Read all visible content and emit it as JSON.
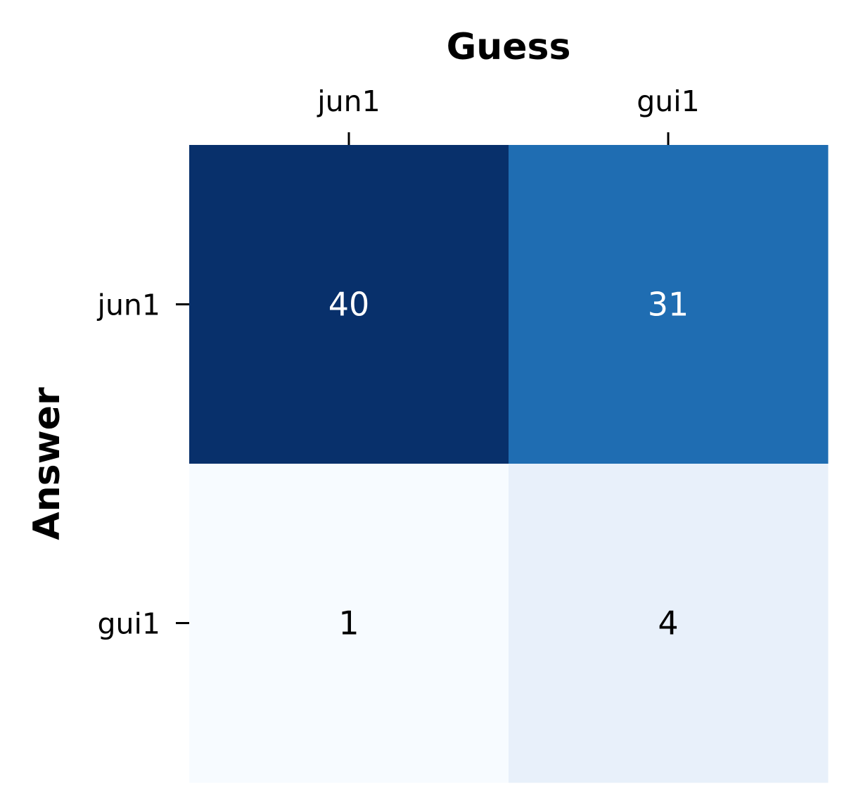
{
  "chart_data": {
    "type": "heatmap",
    "title": "",
    "xlabel": "Guess",
    "ylabel": "Answer",
    "x_categories": [
      "jun1",
      "gui1"
    ],
    "y_categories": [
      "jun1",
      "gui1"
    ],
    "values": [
      [
        40,
        31
      ],
      [
        1,
        4
      ]
    ],
    "colormap": "Blues",
    "value_range": [
      1,
      40
    ],
    "x_axis_position": "top",
    "grid": false,
    "colorbar": false,
    "annotations": true,
    "cell_colors": [
      [
        "#08306b",
        "#1f6db2"
      ],
      [
        "#f7fbff",
        "#e8f0fa"
      ]
    ],
    "annotation_colors": [
      [
        "#ffffff",
        "#ffffff"
      ],
      [
        "#000000",
        "#000000"
      ]
    ]
  }
}
